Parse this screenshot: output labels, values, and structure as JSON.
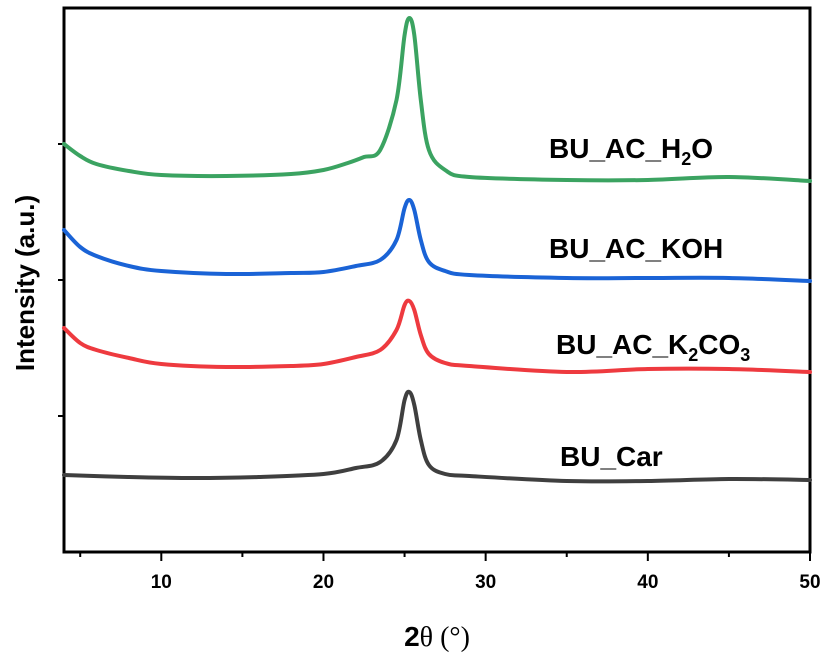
{
  "chart_data": {
    "type": "line",
    "xlabel": "2θ (°)",
    "ylabel": "Intensity (a.u.)",
    "xlim": [
      4,
      50
    ],
    "xticks": [
      10,
      20,
      30,
      40,
      50
    ],
    "y_tick_labels_shown": false,
    "grid": false,
    "legend": "labels placed next to curves (right)",
    "series": [
      {
        "name": "BU_Car",
        "color": "#3f3f3f",
        "label_parts": [
          {
            "t": "BU_Car"
          }
        ],
        "x": [
          4,
          8,
          12,
          16,
          20,
          22,
          23.5,
          24.5,
          25,
          25.3,
          25.6,
          26,
          26.5,
          27.5,
          29,
          35,
          40,
          45,
          50
        ],
        "y": [
          475,
          477,
          478,
          477,
          474,
          468,
          462,
          440,
          400,
          392,
          405,
          440,
          465,
          474,
          476,
          481,
          481,
          479,
          480
        ]
      },
      {
        "name": "BU_AC_K2CO3",
        "color": "#ee3a3f",
        "label_parts": [
          {
            "t": "BU_AC_K"
          },
          {
            "t": "2",
            "sub": true
          },
          {
            "t": "CO"
          },
          {
            "t": "3",
            "sub": true
          }
        ],
        "x": [
          4,
          5,
          6,
          8,
          10,
          14,
          18,
          20,
          22,
          23.5,
          24.5,
          25,
          25.3,
          25.6,
          26,
          26.5,
          27.5,
          29,
          35,
          40,
          45,
          50
        ],
        "y": [
          328,
          343,
          350,
          358,
          364,
          367,
          366,
          364,
          357,
          350,
          330,
          305,
          301,
          310,
          335,
          354,
          363,
          366,
          372,
          369,
          369,
          372
        ]
      },
      {
        "name": "BU_AC_KOH",
        "color": "#1a63d6",
        "label_parts": [
          {
            "t": "BU_AC_KOH"
          }
        ],
        "x": [
          4,
          5,
          6,
          8,
          10,
          14,
          18,
          20,
          22,
          23.5,
          24.5,
          25,
          25.3,
          25.6,
          26,
          26.5,
          27.5,
          29,
          35,
          40,
          45,
          50
        ],
        "y": [
          230,
          247,
          256,
          266,
          271,
          274,
          273,
          272,
          266,
          260,
          240,
          208,
          200,
          210,
          240,
          262,
          271,
          275,
          278,
          278,
          278,
          281
        ]
      },
      {
        "name": "BU_AC_H2O",
        "color": "#3ba361",
        "label_parts": [
          {
            "t": "BU_AC_H"
          },
          {
            "t": "2",
            "sub": true
          },
          {
            "t": "O"
          }
        ],
        "x": [
          4,
          5,
          6,
          8,
          10,
          14,
          18,
          20,
          21.5,
          22.5,
          23.5,
          24.5,
          25,
          25.3,
          25.6,
          26,
          26.5,
          27.5,
          29,
          35,
          40,
          45,
          50
        ],
        "y": [
          144,
          156,
          164,
          171,
          175,
          176,
          174,
          170,
          163,
          157,
          150,
          100,
          35,
          18,
          35,
          100,
          150,
          170,
          177,
          180,
          180,
          177,
          181
        ]
      }
    ]
  }
}
